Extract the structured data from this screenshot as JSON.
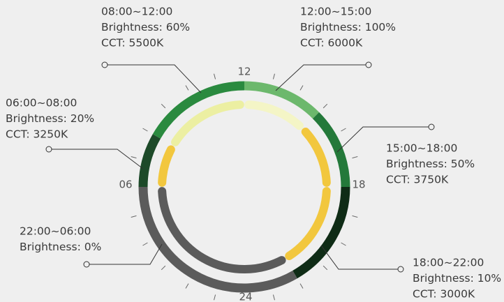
{
  "hours": [
    "12",
    "18",
    "24",
    "06"
  ],
  "segments": [
    {
      "time": "06:00~08:00",
      "brightness": "Brightness: 20%",
      "cct": "CCT: 3250K",
      "outer_color": "#1d4a29",
      "inner_color": "#f2c73e"
    },
    {
      "time": "08:00~12:00",
      "brightness": "Brightness: 60%",
      "cct": "CCT: 5500K",
      "outer_color": "#2a8a3f",
      "inner_color": "#ecefa2"
    },
    {
      "time": "12:00~15:00",
      "brightness": "Brightness: 100%",
      "cct": "CCT: 6000K",
      "outer_color": "#6cb86c",
      "inner_color": "#f4f5c6"
    },
    {
      "time": "15:00~18:00",
      "brightness": "Brightness: 50%",
      "cct": "CCT: 3750K",
      "outer_color": "#24793a",
      "inner_color": "#f2c73e"
    },
    {
      "time": "18:00~22:00",
      "brightness": "Brightness: 10%",
      "cct": "CCT: 3000K",
      "outer_color": "#0f2c16",
      "inner_color": "#f2c73e"
    },
    {
      "time": "22:00~06:00",
      "brightness": "Brightness: 0%",
      "outer_color": "#5b5b5b",
      "inner_color": "#5b5b5b"
    }
  ]
}
